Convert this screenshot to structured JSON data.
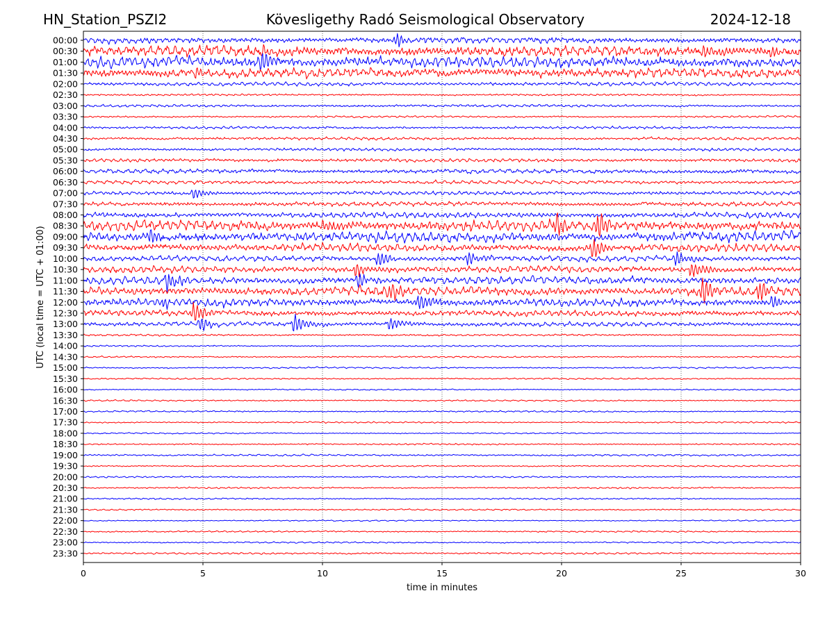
{
  "header": {
    "station": "HN_Station_PSZI2",
    "observatory": "Kövesligethy Radó Seismological Observatory",
    "date": "2024-12-18"
  },
  "chart_data": {
    "type": "line",
    "title": "Kövesligethy Radó Seismological Observatory",
    "xlabel": "time in minutes",
    "ylabel": "UTC (local time = UTC + 01:00)",
    "xlim": [
      0,
      30
    ],
    "x_ticks": [
      "0",
      "5",
      "10",
      "15",
      "20",
      "25",
      "30"
    ],
    "grid": "vertical dotted lines at each x tick",
    "colors": {
      "even": "#0000ff",
      "odd": "#ff0000"
    },
    "row_labels": [
      "00:00",
      "00:30",
      "01:00",
      "01:30",
      "02:00",
      "02:30",
      "03:00",
      "03:30",
      "04:00",
      "04:30",
      "05:00",
      "05:30",
      "06:00",
      "06:30",
      "07:00",
      "07:30",
      "08:00",
      "08:30",
      "09:00",
      "09:30",
      "10:00",
      "10:30",
      "11:00",
      "11:30",
      "12:00",
      "12:30",
      "13:00",
      "13:30",
      "14:00",
      "14:30",
      "15:00",
      "15:30",
      "16:00",
      "16:30",
      "17:00",
      "17:30",
      "18:00",
      "18:30",
      "19:00",
      "19:30",
      "20:00",
      "20:30",
      "21:00",
      "21:30",
      "22:00",
      "22:30",
      "23:00",
      "23:30"
    ],
    "noise_level": [
      0.45,
      0.8,
      0.85,
      0.75,
      0.3,
      0.15,
      0.2,
      0.15,
      0.2,
      0.22,
      0.22,
      0.28,
      0.35,
      0.3,
      0.3,
      0.35,
      0.45,
      0.85,
      0.8,
      0.6,
      0.45,
      0.5,
      0.6,
      0.7,
      0.6,
      0.45,
      0.35,
      0.15,
      0.12,
      0.12,
      0.12,
      0.12,
      0.1,
      0.12,
      0.12,
      0.12,
      0.1,
      0.12,
      0.15,
      0.12,
      0.12,
      0.12,
      0.12,
      0.12,
      0.1,
      0.12,
      0.12,
      0.15
    ],
    "events": [
      {
        "row": 0,
        "minute": 13.1,
        "amp": 1.0
      },
      {
        "row": 1,
        "minute": 7.5,
        "amp": 1.1
      },
      {
        "row": 1,
        "minute": 25.9,
        "amp": 1.3
      },
      {
        "row": 1,
        "minute": 28.8,
        "amp": 1.1
      },
      {
        "row": 2,
        "minute": 7.4,
        "amp": 1.4
      },
      {
        "row": 3,
        "minute": 4.7,
        "amp": 1.2
      },
      {
        "row": 14,
        "minute": 4.6,
        "amp": 0.8
      },
      {
        "row": 17,
        "minute": 19.8,
        "amp": 1.6
      },
      {
        "row": 17,
        "minute": 21.5,
        "amp": 1.7
      },
      {
        "row": 17,
        "minute": 10.0,
        "amp": 1.2
      },
      {
        "row": 18,
        "minute": 2.8,
        "amp": 1.1
      },
      {
        "row": 19,
        "minute": 21.3,
        "amp": 1.4
      },
      {
        "row": 20,
        "minute": 12.3,
        "amp": 1.2
      },
      {
        "row": 20,
        "minute": 16.1,
        "amp": 1.1
      },
      {
        "row": 20,
        "minute": 24.8,
        "amp": 1.2
      },
      {
        "row": 21,
        "minute": 11.4,
        "amp": 1.3
      },
      {
        "row": 21,
        "minute": 25.4,
        "amp": 1.4
      },
      {
        "row": 22,
        "minute": 3.5,
        "amp": 1.4
      },
      {
        "row": 22,
        "minute": 11.5,
        "amp": 1.1
      },
      {
        "row": 23,
        "minute": 25.9,
        "amp": 2.0
      },
      {
        "row": 23,
        "minute": 28.3,
        "amp": 1.6
      },
      {
        "row": 23,
        "minute": 12.8,
        "amp": 1.1
      },
      {
        "row": 24,
        "minute": 28.8,
        "amp": 1.3
      },
      {
        "row": 24,
        "minute": 14.0,
        "amp": 1.1
      },
      {
        "row": 24,
        "minute": 3.3,
        "amp": 1.0
      },
      {
        "row": 25,
        "minute": 4.6,
        "amp": 1.4
      },
      {
        "row": 26,
        "minute": 8.8,
        "amp": 1.7
      },
      {
        "row": 26,
        "minute": 12.8,
        "amp": 1.2
      },
      {
        "row": 26,
        "minute": 4.9,
        "amp": 1.1
      }
    ]
  }
}
